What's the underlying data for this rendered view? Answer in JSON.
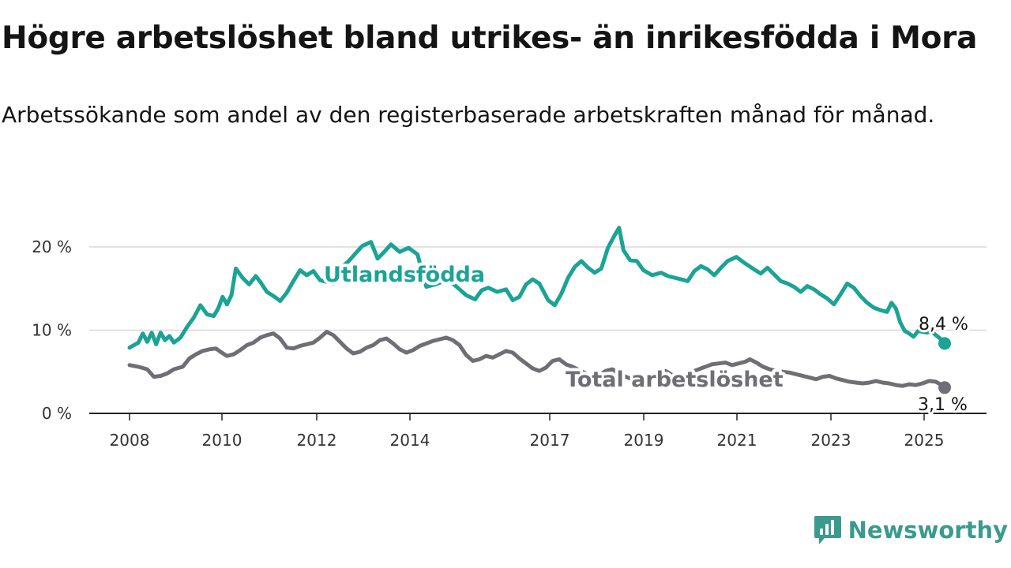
{
  "header": {
    "title": "Högre arbetslöshet bland utrikes- än inrikesfödda i Mora",
    "subtitle": "Arbetssökande som andel av den registerbaserade arbetskraften månad för månad."
  },
  "brand": {
    "name": "Newsworthy",
    "icon": "newsworthy-logo-icon",
    "color": "#3a9a8e"
  },
  "chart_data": {
    "type": "line",
    "title": "Högre arbetslöshet bland utrikes- än inrikesfödda i Mora",
    "subtitle": "Arbetssökande som andel av den registerbaserade arbetskraften månad för månad.",
    "xlim": [
      2008,
      2025.9
    ],
    "ylim": [
      0,
      22.5
    ],
    "x_ticks": [
      2008,
      2010,
      2012,
      2014,
      2017,
      2019,
      2021,
      2023,
      2025
    ],
    "x_tick_labels": [
      "2008",
      "2010",
      "2012",
      "2014",
      "2017",
      "2019",
      "2021",
      "2023",
      "2025"
    ],
    "y_ticks": [
      0,
      10,
      20
    ],
    "y_tick_labels": [
      "0 %",
      "10 %",
      "20 %"
    ],
    "grid": "horizontal",
    "legend": "direct labels on lines",
    "series": [
      {
        "name": "Utlandsfödda",
        "color": "#1ba396",
        "end_label": "8,4 %",
        "points": [
          [
            2008.0,
            7.9
          ],
          [
            2008.2,
            8.5
          ],
          [
            2008.3,
            9.6
          ],
          [
            2008.4,
            8.6
          ],
          [
            2008.5,
            9.7
          ],
          [
            2008.6,
            8.3
          ],
          [
            2008.7,
            9.7
          ],
          [
            2008.8,
            8.8
          ],
          [
            2008.9,
            9.3
          ],
          [
            2009.0,
            8.5
          ],
          [
            2009.15,
            9.1
          ],
          [
            2009.3,
            10.4
          ],
          [
            2009.45,
            11.5
          ],
          [
            2009.6,
            13.0
          ],
          [
            2009.75,
            11.9
          ],
          [
            2009.9,
            11.7
          ],
          [
            2010.0,
            12.6
          ],
          [
            2010.1,
            14.0
          ],
          [
            2010.2,
            13.1
          ],
          [
            2010.3,
            14.2
          ],
          [
            2010.4,
            17.4
          ],
          [
            2010.55,
            16.3
          ],
          [
            2010.7,
            15.5
          ],
          [
            2010.85,
            16.5
          ],
          [
            2010.95,
            15.8
          ],
          [
            2011.1,
            14.6
          ],
          [
            2011.25,
            14.1
          ],
          [
            2011.4,
            13.5
          ],
          [
            2011.55,
            14.5
          ],
          [
            2011.7,
            15.9
          ],
          [
            2011.85,
            17.2
          ],
          [
            2012.0,
            16.6
          ],
          [
            2012.15,
            17.1
          ],
          [
            2012.3,
            16.0
          ],
          [
            2012.45,
            15.8
          ],
          [
            2012.6,
            15.6
          ],
          [
            2012.8,
            17.6
          ],
          [
            2012.95,
            18.3
          ],
          [
            2013.1,
            19.2
          ],
          [
            2013.25,
            20.1
          ],
          [
            2013.45,
            20.6
          ],
          [
            2013.6,
            18.6
          ],
          [
            2013.75,
            19.4
          ],
          [
            2013.9,
            20.3
          ],
          [
            2014.1,
            19.4
          ],
          [
            2014.3,
            19.9
          ],
          [
            2014.5,
            19.1
          ],
          [
            2014.7,
            15.2
          ],
          [
            2014.9,
            15.5
          ],
          [
            2015.1,
            15.9
          ],
          [
            2015.3,
            15.6
          ],
          [
            2015.45,
            14.9
          ],
          [
            2015.6,
            14.2
          ],
          [
            2015.8,
            13.7
          ],
          [
            2015.95,
            14.8
          ],
          [
            2016.1,
            15.1
          ],
          [
            2016.3,
            14.6
          ],
          [
            2016.5,
            14.9
          ],
          [
            2016.65,
            13.6
          ],
          [
            2016.8,
            14.0
          ],
          [
            2016.95,
            15.5
          ],
          [
            2017.1,
            16.1
          ],
          [
            2017.25,
            15.6
          ],
          [
            2017.45,
            13.6
          ],
          [
            2017.6,
            13.0
          ],
          [
            2017.75,
            14.4
          ],
          [
            2017.9,
            16.3
          ],
          [
            2018.05,
            17.6
          ],
          [
            2018.2,
            18.3
          ],
          [
            2018.35,
            17.5
          ],
          [
            2018.5,
            16.9
          ],
          [
            2018.65,
            17.4
          ],
          [
            2018.8,
            19.9
          ],
          [
            2018.95,
            21.4
          ],
          [
            2019.05,
            22.3
          ],
          [
            2019.15,
            19.6
          ],
          [
            2019.3,
            18.4
          ],
          [
            2019.45,
            18.3
          ],
          [
            2019.6,
            17.2
          ],
          [
            2019.8,
            16.6
          ],
          [
            2020.0,
            16.9
          ],
          [
            2020.15,
            16.5
          ],
          [
            2020.3,
            16.3
          ],
          [
            2020.45,
            16.1
          ],
          [
            2020.6,
            15.9
          ],
          [
            2020.75,
            17.1
          ],
          [
            2020.9,
            17.7
          ],
          [
            2021.05,
            17.3
          ],
          [
            2021.2,
            16.6
          ],
          [
            2021.35,
            17.5
          ],
          [
            2021.5,
            18.3
          ],
          [
            2021.7,
            18.8
          ],
          [
            2021.9,
            18.0
          ],
          [
            2022.1,
            17.3
          ],
          [
            2022.25,
            16.8
          ],
          [
            2022.4,
            17.5
          ],
          [
            2022.55,
            16.7
          ],
          [
            2022.7,
            15.9
          ],
          [
            2022.85,
            15.6
          ],
          [
            2023.0,
            15.2
          ],
          [
            2023.15,
            14.6
          ],
          [
            2023.3,
            15.3
          ],
          [
            2023.45,
            14.9
          ],
          [
            2023.6,
            14.3
          ],
          [
            2023.75,
            13.8
          ],
          [
            2023.9,
            13.1
          ],
          [
            2024.05,
            14.3
          ],
          [
            2024.2,
            15.6
          ],
          [
            2024.35,
            15.1
          ],
          [
            2024.5,
            14.1
          ],
          [
            2024.65,
            13.3
          ],
          [
            2024.8,
            12.7
          ],
          [
            2024.95,
            12.4
          ],
          [
            2025.1,
            12.2
          ],
          [
            2025.2,
            13.3
          ],
          [
            2025.3,
            12.6
          ],
          [
            2025.4,
            10.9
          ],
          [
            2025.5,
            9.9
          ],
          [
            2025.6,
            9.6
          ],
          [
            2025.7,
            9.2
          ],
          [
            2025.8,
            9.9
          ],
          [
            2025.9,
            9.8
          ],
          [
            2026.0,
            9.7
          ],
          [
            2026.1,
            9.9
          ],
          [
            2026.2,
            9.4
          ],
          [
            2026.3,
            9.0
          ],
          [
            2026.4,
            8.4
          ]
        ]
      },
      {
        "name": "Total arbetslöshet",
        "color": "#6f6e75",
        "end_label": "3,1 %",
        "points": [
          [
            2008.0,
            5.8
          ],
          [
            2008.2,
            5.6
          ],
          [
            2008.4,
            5.3
          ],
          [
            2008.55,
            4.4
          ],
          [
            2008.7,
            4.5
          ],
          [
            2008.85,
            4.8
          ],
          [
            2009.0,
            5.3
          ],
          [
            2009.2,
            5.6
          ],
          [
            2009.35,
            6.6
          ],
          [
            2009.5,
            7.1
          ],
          [
            2009.65,
            7.5
          ],
          [
            2009.8,
            7.7
          ],
          [
            2009.95,
            7.8
          ],
          [
            2010.05,
            7.4
          ],
          [
            2010.2,
            6.9
          ],
          [
            2010.35,
            7.1
          ],
          [
            2010.5,
            7.6
          ],
          [
            2010.65,
            8.2
          ],
          [
            2010.8,
            8.5
          ],
          [
            2010.95,
            9.1
          ],
          [
            2011.1,
            9.4
          ],
          [
            2011.25,
            9.6
          ],
          [
            2011.4,
            9.0
          ],
          [
            2011.55,
            7.9
          ],
          [
            2011.7,
            7.8
          ],
          [
            2011.85,
            8.1
          ],
          [
            2012.0,
            8.3
          ],
          [
            2012.15,
            8.5
          ],
          [
            2012.3,
            9.1
          ],
          [
            2012.45,
            9.8
          ],
          [
            2012.6,
            9.4
          ],
          [
            2012.75,
            8.6
          ],
          [
            2012.9,
            7.8
          ],
          [
            2013.05,
            7.2
          ],
          [
            2013.2,
            7.4
          ],
          [
            2013.35,
            7.9
          ],
          [
            2013.5,
            8.2
          ],
          [
            2013.65,
            8.8
          ],
          [
            2013.8,
            9.0
          ],
          [
            2013.95,
            8.4
          ],
          [
            2014.1,
            7.7
          ],
          [
            2014.25,
            7.3
          ],
          [
            2014.4,
            7.6
          ],
          [
            2014.55,
            8.1
          ],
          [
            2014.7,
            8.4
          ],
          [
            2014.85,
            8.7
          ],
          [
            2015.0,
            8.9
          ],
          [
            2015.15,
            9.1
          ],
          [
            2015.3,
            8.8
          ],
          [
            2015.45,
            8.2
          ],
          [
            2015.6,
            7.0
          ],
          [
            2015.75,
            6.3
          ],
          [
            2015.9,
            6.5
          ],
          [
            2016.05,
            6.9
          ],
          [
            2016.2,
            6.7
          ],
          [
            2016.35,
            7.1
          ],
          [
            2016.5,
            7.5
          ],
          [
            2016.65,
            7.3
          ],
          [
            2016.8,
            6.6
          ],
          [
            2016.95,
            6.0
          ],
          [
            2017.1,
            5.4
          ],
          [
            2017.25,
            5.1
          ],
          [
            2017.4,
            5.5
          ],
          [
            2017.55,
            6.3
          ],
          [
            2017.7,
            6.5
          ],
          [
            2017.85,
            5.9
          ],
          [
            2018.0,
            5.6
          ],
          [
            2018.15,
            5.2
          ],
          [
            2018.3,
            4.8
          ],
          [
            2018.45,
            4.3
          ],
          [
            2018.6,
            4.6
          ],
          [
            2018.75,
            5.1
          ],
          [
            2018.9,
            5.3
          ],
          [
            2019.05,
            4.8
          ],
          [
            2019.2,
            4.4
          ],
          [
            2019.35,
            4.1
          ],
          [
            2019.5,
            3.8
          ],
          [
            2019.65,
            3.9
          ],
          [
            2019.8,
            4.4
          ],
          [
            2019.95,
            4.7
          ],
          [
            2020.1,
            5.1
          ],
          [
            2020.25,
            4.6
          ],
          [
            2020.4,
            4.3
          ],
          [
            2020.55,
            4.5
          ],
          [
            2020.7,
            5.0
          ],
          [
            2020.85,
            5.3
          ],
          [
            2021.0,
            5.6
          ],
          [
            2021.15,
            5.9
          ],
          [
            2021.3,
            6.0
          ],
          [
            2021.45,
            6.1
          ],
          [
            2021.6,
            5.8
          ],
          [
            2021.75,
            6.0
          ],
          [
            2021.9,
            6.2
          ],
          [
            2022.0,
            6.5
          ],
          [
            2022.15,
            6.1
          ],
          [
            2022.3,
            5.6
          ],
          [
            2022.45,
            5.3
          ],
          [
            2022.6,
            5.1
          ],
          [
            2022.75,
            5.0
          ],
          [
            2022.9,
            4.9
          ],
          [
            2023.05,
            4.7
          ],
          [
            2023.2,
            4.5
          ],
          [
            2023.35,
            4.3
          ],
          [
            2023.5,
            4.1
          ],
          [
            2023.65,
            4.4
          ],
          [
            2023.8,
            4.5
          ],
          [
            2023.95,
            4.2
          ],
          [
            2024.1,
            4.0
          ],
          [
            2024.25,
            3.8
          ],
          [
            2024.4,
            3.7
          ],
          [
            2024.55,
            3.6
          ],
          [
            2024.7,
            3.7
          ],
          [
            2024.85,
            3.9
          ],
          [
            2025.0,
            3.7
          ],
          [
            2025.15,
            3.6
          ],
          [
            2025.3,
            3.4
          ],
          [
            2025.45,
            3.3
          ],
          [
            2025.6,
            3.5
          ],
          [
            2025.75,
            3.4
          ],
          [
            2025.9,
            3.6
          ],
          [
            2026.05,
            3.9
          ],
          [
            2026.2,
            3.8
          ],
          [
            2026.3,
            3.5
          ],
          [
            2026.4,
            3.1
          ]
        ]
      }
    ]
  }
}
